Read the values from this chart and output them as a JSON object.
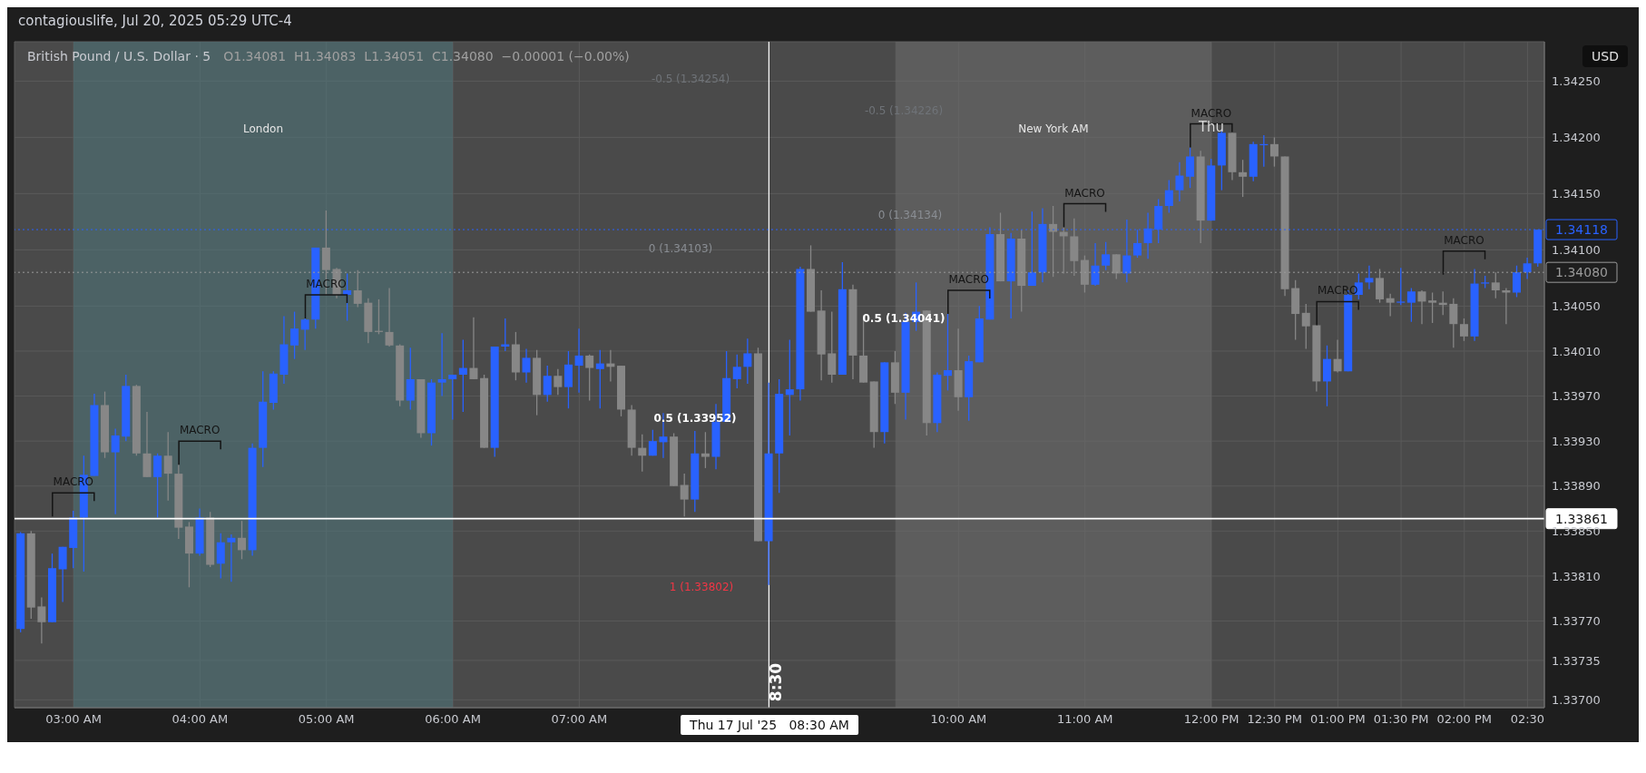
{
  "chart_data": {
    "type": "candlestick",
    "title": "British Pound / U.S. Dollar · 5",
    "subtitle": "O1.34081  H1.34083  L1.34051  C1.34080  −0.00001 (−0.00%)",
    "ylabel": "USD",
    "x": [
      "2025-07-17T02:35",
      "2025-07-17T02:40",
      "2025-07-17T02:45",
      "2025-07-17T02:50",
      "2025-07-17T02:55",
      "2025-07-17T03:00",
      "2025-07-17T03:05",
      "2025-07-17T03:10",
      "2025-07-17T03:15",
      "2025-07-17T03:20",
      "2025-07-17T03:25",
      "2025-07-17T03:30",
      "2025-07-17T03:35",
      "2025-07-17T03:40",
      "2025-07-17T03:45",
      "2025-07-17T03:50",
      "2025-07-17T03:55",
      "2025-07-17T04:00",
      "2025-07-17T04:05",
      "2025-07-17T04:10",
      "2025-07-17T04:15",
      "2025-07-17T04:20",
      "2025-07-17T04:25",
      "2025-07-17T04:30",
      "2025-07-17T04:35",
      "2025-07-17T04:40",
      "2025-07-17T04:45",
      "2025-07-17T04:50",
      "2025-07-17T04:55",
      "2025-07-17T05:00",
      "2025-07-17T05:05",
      "2025-07-17T05:10",
      "2025-07-17T05:15",
      "2025-07-17T05:20",
      "2025-07-17T05:25",
      "2025-07-17T05:30",
      "2025-07-17T05:35",
      "2025-07-17T05:40",
      "2025-07-17T05:45",
      "2025-07-17T05:50",
      "2025-07-17T05:55",
      "2025-07-17T06:00",
      "2025-07-17T06:05",
      "2025-07-17T06:10",
      "2025-07-17T06:15",
      "2025-07-17T06:20",
      "2025-07-17T06:25",
      "2025-07-17T06:30",
      "2025-07-17T06:35",
      "2025-07-17T06:40",
      "2025-07-17T06:45",
      "2025-07-17T06:50",
      "2025-07-17T06:55",
      "2025-07-17T07:00",
      "2025-07-17T07:05",
      "2025-07-17T07:10",
      "2025-07-17T07:15",
      "2025-07-17T07:20",
      "2025-07-17T07:25",
      "2025-07-17T07:30",
      "2025-07-17T07:35",
      "2025-07-17T07:40",
      "2025-07-17T07:45",
      "2025-07-17T07:50",
      "2025-07-17T07:55",
      "2025-07-17T08:00",
      "2025-07-17T08:05",
      "2025-07-17T08:10",
      "2025-07-17T08:15",
      "2025-07-17T08:20",
      "2025-07-17T08:25",
      "2025-07-17T08:30",
      "2025-07-17T08:35",
      "2025-07-17T08:40",
      "2025-07-17T08:45",
      "2025-07-17T08:50",
      "2025-07-17T08:55",
      "2025-07-17T09:00",
      "2025-07-17T09:05",
      "2025-07-17T09:10",
      "2025-07-17T09:15",
      "2025-07-17T09:20",
      "2025-07-17T09:25",
      "2025-07-17T09:30",
      "2025-07-17T09:35",
      "2025-07-17T09:40",
      "2025-07-17T09:45",
      "2025-07-17T09:50",
      "2025-07-17T09:55",
      "2025-07-17T10:00",
      "2025-07-17T10:05",
      "2025-07-17T10:10",
      "2025-07-17T10:15",
      "2025-07-17T10:20",
      "2025-07-17T10:25",
      "2025-07-17T10:30",
      "2025-07-17T10:35",
      "2025-07-17T10:40",
      "2025-07-17T10:45",
      "2025-07-17T10:50",
      "2025-07-17T10:55",
      "2025-07-17T11:00",
      "2025-07-17T11:05",
      "2025-07-17T11:10",
      "2025-07-17T11:15",
      "2025-07-17T11:20",
      "2025-07-17T11:25",
      "2025-07-17T11:30",
      "2025-07-17T11:35",
      "2025-07-17T11:40",
      "2025-07-17T11:45",
      "2025-07-17T11:50",
      "2025-07-17T11:55",
      "2025-07-17T12:00",
      "2025-07-17T12:05",
      "2025-07-17T12:10",
      "2025-07-17T12:15",
      "2025-07-17T12:20",
      "2025-07-17T12:25",
      "2025-07-17T12:30",
      "2025-07-17T12:35",
      "2025-07-17T12:40",
      "2025-07-17T12:45",
      "2025-07-17T12:50",
      "2025-07-17T12:55",
      "2025-07-17T13:00",
      "2025-07-17T13:05",
      "2025-07-17T13:10",
      "2025-07-17T13:15",
      "2025-07-17T13:20",
      "2025-07-17T13:25",
      "2025-07-17T13:30",
      "2025-07-17T13:35",
      "2025-07-17T13:40",
      "2025-07-17T13:45",
      "2025-07-17T13:50",
      "2025-07-17T13:55",
      "2025-07-17T14:00",
      "2025-07-17T14:05",
      "2025-07-17T14:10",
      "2025-07-17T14:15",
      "2025-07-17T14:20",
      "2025-07-17T14:25",
      "2025-07-17T14:30",
      "2025-07-17T14:35"
    ],
    "ohlc": [
      [
        1.33763,
        1.33849,
        1.3376,
        1.33848
      ],
      [
        1.33848,
        1.3385,
        1.33772,
        1.33782
      ],
      [
        1.33783,
        1.33791,
        1.3375,
        1.33769
      ],
      [
        1.33769,
        1.3383,
        1.33769,
        1.33817
      ],
      [
        1.33816,
        1.33836,
        1.33787,
        1.33836
      ],
      [
        1.33835,
        1.33868,
        1.33817,
        1.33862
      ],
      [
        1.33862,
        1.33917,
        1.33814,
        1.339
      ],
      [
        1.33899,
        1.33972,
        1.33899,
        1.33962
      ],
      [
        1.33962,
        1.33974,
        1.33915,
        1.3392
      ],
      [
        1.3392,
        1.33941,
        1.33865,
        1.33935
      ],
      [
        1.33934,
        1.33989,
        1.3393,
        1.33979
      ],
      [
        1.33979,
        1.3398,
        1.33917,
        1.33919
      ],
      [
        1.33919,
        1.33956,
        1.33898,
        1.33898
      ],
      [
        1.33898,
        1.33919,
        1.33862,
        1.33917
      ],
      [
        1.33917,
        1.33938,
        1.33877,
        1.33901
      ],
      [
        1.33901,
        1.33909,
        1.33843,
        1.33853
      ],
      [
        1.33854,
        1.33858,
        1.338,
        1.3383
      ],
      [
        1.3383,
        1.3387,
        1.33828,
        1.33862
      ],
      [
        1.33862,
        1.33867,
        1.33818,
        1.3382
      ],
      [
        1.33821,
        1.33848,
        1.33808,
        1.3384
      ],
      [
        1.3384,
        1.33847,
        1.33805,
        1.33844
      ],
      [
        1.33844,
        1.33859,
        1.33825,
        1.33833
      ],
      [
        1.33833,
        1.33928,
        1.33828,
        1.33924
      ],
      [
        1.33924,
        1.33992,
        1.33907,
        1.33965
      ],
      [
        1.33964,
        1.33992,
        1.33958,
        1.3399
      ],
      [
        1.33989,
        1.34041,
        1.33981,
        1.34016
      ],
      [
        1.34015,
        1.34045,
        1.34003,
        1.3403
      ],
      [
        1.34029,
        1.34039,
        1.34011,
        1.34038
      ],
      [
        1.34038,
        1.34102,
        1.3403,
        1.34102
      ],
      [
        1.34102,
        1.34135,
        1.3406,
        1.34082
      ],
      [
        1.34083,
        1.34084,
        1.34057,
        1.3406
      ],
      [
        1.3406,
        1.34079,
        1.34037,
        1.34064
      ],
      [
        1.34064,
        1.34082,
        1.34049,
        1.34052
      ],
      [
        1.34053,
        1.34057,
        1.34017,
        1.34027
      ],
      [
        1.34028,
        1.34056,
        1.34025,
        1.34027
      ],
      [
        1.34027,
        1.34066,
        1.34014,
        1.34015
      ],
      [
        1.34015,
        1.34016,
        1.33961,
        1.33966
      ],
      [
        1.33966,
        1.34013,
        1.33958,
        1.33985
      ],
      [
        1.33985,
        1.33985,
        1.33933,
        1.33937
      ],
      [
        1.33937,
        1.33985,
        1.33926,
        1.33982
      ],
      [
        1.33982,
        1.34026,
        1.3397,
        1.33985
      ],
      [
        1.33985,
        1.33989,
        1.33949,
        1.33989
      ],
      [
        1.33989,
        1.3402,
        1.33956,
        1.33995
      ],
      [
        1.33995,
        1.3404,
        1.33985,
        1.33985
      ],
      [
        1.33986,
        1.33989,
        1.33924,
        1.33924
      ],
      [
        1.33924,
        1.34014,
        1.33916,
        1.34014
      ],
      [
        1.34014,
        1.34039,
        1.3401,
        1.34016
      ],
      [
        1.34016,
        1.34027,
        1.33984,
        1.33991
      ],
      [
        1.33991,
        1.34012,
        1.33982,
        1.34004
      ],
      [
        1.34004,
        1.34011,
        1.33953,
        1.33971
      ],
      [
        1.33971,
        1.33997,
        1.33965,
        1.33988
      ],
      [
        1.33988,
        1.33994,
        1.33971,
        1.33978
      ],
      [
        1.33978,
        1.3401,
        1.33959,
        1.33998
      ],
      [
        1.33997,
        1.3403,
        1.33973,
        1.34006
      ],
      [
        1.34006,
        1.34007,
        1.33966,
        1.33995
      ],
      [
        1.33994,
        1.34011,
        1.33959,
        1.33999
      ],
      [
        1.33999,
        1.34011,
        1.33983,
        1.33996
      ],
      [
        1.33997,
        1.33997,
        1.33952,
        1.33958
      ],
      [
        1.33958,
        1.33962,
        1.33917,
        1.33924
      ],
      [
        1.33924,
        1.33936,
        1.33903,
        1.33917
      ],
      [
        1.33917,
        1.3394,
        1.33917,
        1.3393
      ],
      [
        1.33929,
        1.33955,
        1.33915,
        1.33934
      ],
      [
        1.33934,
        1.33937,
        1.3389,
        1.3389
      ],
      [
        1.33891,
        1.33901,
        1.33863,
        1.33878
      ],
      [
        1.33878,
        1.33939,
        1.33867,
        1.33919
      ],
      [
        1.33919,
        1.33938,
        1.33906,
        1.33916
      ],
      [
        1.33916,
        1.33963,
        1.33905,
        1.33947
      ],
      [
        1.33947,
        1.3401,
        1.33947,
        1.33986
      ],
      [
        1.33985,
        1.34007,
        1.33977,
        1.33996
      ],
      [
        1.33996,
        1.34021,
        1.33981,
        1.34008
      ],
      [
        1.34008,
        1.34013,
        1.33841,
        1.33841
      ],
      [
        1.33841,
        1.33982,
        1.33802,
        1.33919
      ],
      [
        1.33919,
        1.33985,
        1.33884,
        1.33972
      ],
      [
        1.33971,
        1.3402,
        1.33935,
        1.33976
      ],
      [
        1.33976,
        1.34085,
        1.33966,
        1.34083
      ],
      [
        1.34083,
        1.34104,
        1.34045,
        1.34045
      ],
      [
        1.34046,
        1.34064,
        1.33984,
        1.34007
      ],
      [
        1.34008,
        1.34045,
        1.33982,
        1.33989
      ],
      [
        1.33989,
        1.34089,
        1.33989,
        1.34065
      ],
      [
        1.34065,
        1.34069,
        1.33985,
        1.34006
      ],
      [
        1.34006,
        1.34042,
        1.33982,
        1.33982
      ],
      [
        1.33983,
        1.33983,
        1.33924,
        1.33938
      ],
      [
        1.33938,
        1.34,
        1.33928,
        1.34
      ],
      [
        1.34,
        1.3401,
        1.33963,
        1.33973
      ],
      [
        1.33973,
        1.34044,
        1.33949,
        1.34036
      ],
      [
        1.34036,
        1.34071,
        1.34028,
        1.34045
      ],
      [
        1.34046,
        1.34046,
        1.33935,
        1.33946
      ],
      [
        1.33946,
        1.33991,
        1.33938,
        1.33989
      ],
      [
        1.33988,
        1.34043,
        1.33975,
        1.33993
      ],
      [
        1.33993,
        1.3403,
        1.33957,
        1.33969
      ],
      [
        1.33969,
        1.34006,
        1.33948,
        1.34001
      ],
      [
        1.34,
        1.3405,
        1.34,
        1.34039
      ],
      [
        1.34038,
        1.3412,
        1.34038,
        1.34114
      ],
      [
        1.34114,
        1.34133,
        1.34072,
        1.34072
      ],
      [
        1.34072,
        1.34115,
        1.34039,
        1.3411
      ],
      [
        1.3411,
        1.34118,
        1.34045,
        1.34068
      ],
      [
        1.34068,
        1.34134,
        1.34068,
        1.3408
      ],
      [
        1.3408,
        1.34137,
        1.34071,
        1.34123
      ],
      [
        1.34123,
        1.34139,
        1.34076,
        1.34116
      ],
      [
        1.34116,
        1.3412,
        1.34079,
        1.34112
      ],
      [
        1.34112,
        1.34128,
        1.34077,
        1.3409
      ],
      [
        1.34091,
        1.34095,
        1.34062,
        1.34069
      ],
      [
        1.34069,
        1.34106,
        1.34068,
        1.34086
      ],
      [
        1.34086,
        1.34107,
        1.34082,
        1.34096
      ],
      [
        1.34096,
        1.34096,
        1.34074,
        1.34079
      ],
      [
        1.34079,
        1.34127,
        1.34071,
        1.34095
      ],
      [
        1.34095,
        1.34118,
        1.34093,
        1.34106
      ],
      [
        1.34106,
        1.34133,
        1.34092,
        1.34119
      ],
      [
        1.34118,
        1.34145,
        1.34106,
        1.34139
      ],
      [
        1.34139,
        1.34162,
        1.34133,
        1.34153
      ],
      [
        1.34153,
        1.34178,
        1.34143,
        1.34166
      ],
      [
        1.34165,
        1.34191,
        1.34155,
        1.34183
      ],
      [
        1.34183,
        1.34188,
        1.34106,
        1.34126
      ],
      [
        1.34126,
        1.34181,
        1.34126,
        1.34175
      ],
      [
        1.34175,
        1.34207,
        1.34153,
        1.34204
      ],
      [
        1.34204,
        1.34204,
        1.34162,
        1.34169
      ],
      [
        1.34169,
        1.3418,
        1.34147,
        1.34165
      ],
      [
        1.34165,
        1.34196,
        1.34161,
        1.34194
      ],
      [
        1.34193,
        1.34202,
        1.34174,
        1.34194
      ],
      [
        1.34194,
        1.342,
        1.34174,
        1.34183
      ],
      [
        1.34183,
        1.34183,
        1.34059,
        1.34065
      ],
      [
        1.34066,
        1.34073,
        1.3402,
        1.34043
      ],
      [
        1.34044,
        1.34052,
        1.34012,
        1.34032
      ],
      [
        1.34033,
        1.34033,
        1.33974,
        1.33983
      ],
      [
        1.33983,
        1.34015,
        1.33961,
        1.34003
      ],
      [
        1.34003,
        1.3402,
        1.33991,
        1.33992
      ],
      [
        1.33992,
        1.34064,
        1.33992,
        1.3406
      ],
      [
        1.3406,
        1.34079,
        1.34056,
        1.34071
      ],
      [
        1.34071,
        1.34086,
        1.34065,
        1.34075
      ],
      [
        1.34075,
        1.34083,
        1.34053,
        1.34056
      ],
      [
        1.34057,
        1.34061,
        1.34041,
        1.34053
      ],
      [
        1.34053,
        1.34084,
        1.34051,
        1.34054
      ],
      [
        1.34053,
        1.34066,
        1.34036,
        1.34063
      ],
      [
        1.34063,
        1.34064,
        1.34034,
        1.34054
      ],
      [
        1.34055,
        1.34062,
        1.34035,
        1.34053
      ],
      [
        1.34053,
        1.34063,
        1.34042,
        1.34051
      ],
      [
        1.34052,
        1.34057,
        1.34013,
        1.34034
      ],
      [
        1.34034,
        1.34039,
        1.34019,
        1.34023
      ],
      [
        1.34023,
        1.34083,
        1.34019,
        1.3407
      ],
      [
        1.3407,
        1.34077,
        1.34066,
        1.34071
      ],
      [
        1.34071,
        1.3408,
        1.34057,
        1.34064
      ],
      [
        1.34064,
        1.34066,
        1.34034,
        1.34062
      ],
      [
        1.34062,
        1.34086,
        1.34058,
        1.3408
      ],
      [
        1.3408,
        1.34093,
        1.34074,
        1.34088
      ],
      [
        1.34088,
        1.34118,
        1.34085,
        1.34118
      ]
    ],
    "colors": [
      "#2962ff",
      "#878787",
      "#878787",
      "#2962ff",
      "#2962ff",
      "#2962ff",
      "#2962ff",
      "#2962ff",
      "#878787",
      "#2962ff",
      "#2962ff",
      "#878787",
      "#878787",
      "#2962ff",
      "#878787",
      "#878787",
      "#878787",
      "#2962ff",
      "#878787",
      "#2962ff",
      "#2962ff",
      "#878787",
      "#2962ff",
      "#2962ff",
      "#2962ff",
      "#2962ff",
      "#2962ff",
      "#2962ff",
      "#2962ff",
      "#878787",
      "#878787",
      "#2962ff",
      "#878787",
      "#878787",
      "#878787",
      "#878787",
      "#878787",
      "#2962ff",
      "#878787",
      "#2962ff",
      "#2962ff",
      "#2962ff",
      "#2962ff",
      "#878787",
      "#878787",
      "#2962ff",
      "#2962ff",
      "#878787",
      "#2962ff",
      "#878787",
      "#2962ff",
      "#878787",
      "#2962ff",
      "#2962ff",
      "#878787",
      "#2962ff",
      "#878787",
      "#878787",
      "#878787",
      "#878787",
      "#2962ff",
      "#2962ff",
      "#878787",
      "#878787",
      "#2962ff",
      "#878787",
      "#2962ff",
      "#2962ff",
      "#2962ff",
      "#2962ff",
      "#878787",
      "#2962ff",
      "#2962ff",
      "#2962ff",
      "#2962ff",
      "#878787",
      "#878787",
      "#878787",
      "#2962ff",
      "#878787",
      "#878787",
      "#878787",
      "#2962ff",
      "#878787",
      "#2962ff",
      "#2962ff",
      "#878787",
      "#2962ff",
      "#2962ff",
      "#878787",
      "#2962ff",
      "#2962ff",
      "#2962ff",
      "#878787",
      "#2962ff",
      "#878787",
      "#2962ff",
      "#2962ff",
      "#878787",
      "#878787",
      "#878787",
      "#878787",
      "#2962ff",
      "#2962ff",
      "#878787",
      "#2962ff",
      "#2962ff",
      "#2962ff",
      "#2962ff",
      "#2962ff",
      "#2962ff",
      "#2962ff",
      "#878787",
      "#2962ff",
      "#2962ff",
      "#878787",
      "#878787",
      "#2962ff",
      "#2962ff",
      "#878787",
      "#878787",
      "#878787",
      "#878787",
      "#878787",
      "#2962ff",
      "#878787",
      "#2962ff",
      "#2962ff",
      "#2962ff",
      "#878787",
      "#878787",
      "#2962ff",
      "#2962ff",
      "#878787",
      "#878787",
      "#878787",
      "#878787",
      "#878787",
      "#2962ff",
      "#2962ff",
      "#878787",
      "#878787",
      "#2962ff",
      "#2962ff",
      "#2962ff"
    ],
    "xlim": [
      "2025-07-17T02:32",
      "2025-07-17T14:38"
    ],
    "xticks": [
      {
        "value": "2025-07-17T03:00",
        "label": "03:00 AM"
      },
      {
        "value": "2025-07-17T04:00",
        "label": "04:00 AM"
      },
      {
        "value": "2025-07-17T05:00",
        "label": "05:00 AM"
      },
      {
        "value": "2025-07-17T06:00",
        "label": "06:00 AM"
      },
      {
        "value": "2025-07-17T07:00",
        "label": "07:00 AM"
      },
      {
        "value": "2025-07-17T10:00",
        "label": "10:00 AM"
      },
      {
        "value": "2025-07-17T11:00",
        "label": "11:00 AM"
      },
      {
        "value": "2025-07-17T12:00",
        "label": "12:00 PM"
      },
      {
        "value": "2025-07-17T12:30",
        "label": "12:30 PM"
      },
      {
        "value": "2025-07-17T13:00",
        "label": "01:00 PM"
      },
      {
        "value": "2025-07-17T13:30",
        "label": "01:30 PM"
      },
      {
        "value": "2025-07-17T14:00",
        "label": "02:00 PM"
      },
      {
        "value": "2025-07-17T14:30",
        "label": "02:30"
      }
    ],
    "ylim": [
      1.33693,
      1.34285
    ],
    "yticks": [
      {
        "value": 1.3425,
        "label": "1.34250"
      },
      {
        "value": 1.342,
        "label": "1.34200"
      },
      {
        "value": 1.3415,
        "label": "1.34150"
      },
      {
        "value": 1.341,
        "label": "1.34100"
      },
      {
        "value": 1.3405,
        "label": "1.34050"
      },
      {
        "value": 1.3401,
        "label": "1.34010"
      },
      {
        "value": 1.3397,
        "label": "1.33970"
      },
      {
        "value": 1.3393,
        "label": "1.33930"
      },
      {
        "value": 1.3389,
        "label": "1.33890"
      },
      {
        "value": 1.3385,
        "label": "1.33850"
      },
      {
        "value": 1.3381,
        "label": "1.33810"
      },
      {
        "value": 1.3377,
        "label": "1.33770"
      },
      1.33735,
      {
        "value": 1.337,
        "label": "1.33700"
      }
    ],
    "grid": true,
    "bands": [
      {
        "axis": "x",
        "from": "2025-07-17T03:00",
        "to": "2025-07-17T06:00",
        "label": "London",
        "color": "#4f7378"
      },
      {
        "axis": "x",
        "from": "2025-07-17T09:30",
        "to": "2025-07-17T12:00",
        "label": "New York AM",
        "color": "#6a6a6a"
      }
    ],
    "ref_lines": [
      {
        "axis": "x",
        "value": "2025-07-17T08:30",
        "label": "8:30",
        "color": "#ffffff"
      },
      {
        "axis": "y",
        "value": 1.3408,
        "label": "1.34080",
        "color": "#9a9a9a",
        "line_style": "dotted"
      },
      {
        "axis": "y",
        "value": 1.33861,
        "label": "1.33861",
        "color": "#ffffff"
      },
      {
        "axis": "y",
        "value": 1.34118,
        "label": "1.34118",
        "color": "#2962ff",
        "line_style": "dotted"
      }
    ],
    "annotations": [
      "contagiouslife, Jul 20, 2025 05:29 UTC-4",
      "Thu 17 Jul '25   08:30 AM",
      {
        "text": "MACRO",
        "x": "2025-07-17T02:50",
        "y": 1.33863
      },
      {
        "text": "MACRO",
        "x": "2025-07-17T03:50",
        "y": 1.33909
      },
      {
        "text": "MACRO",
        "x": "2025-07-17T04:50",
        "y": 1.34039
      },
      {
        "text": "MACRO",
        "x": "2025-07-17T09:55",
        "y": 1.34043
      },
      {
        "text": "MACRO",
        "x": "2025-07-17T10:50",
        "y": 1.3412
      },
      {
        "text": "MACRO",
        "x": "2025-07-17T11:50",
        "y": 1.34191
      },
      {
        "text": "MACRO",
        "x": "2025-07-17T12:50",
        "y": 1.34033
      },
      {
        "text": "MACRO",
        "x": "2025-07-17T13:50",
        "y": 1.34078
      },
      "Thu",
      "-0.5 (1.34254)",
      "0 (1.34103)",
      "0.5 (1.33952)",
      "1 (1.33802)",
      "-0.5 (1.34226)",
      "0 (1.34134)",
      "0.5 (1.34041)"
    ]
  }
}
